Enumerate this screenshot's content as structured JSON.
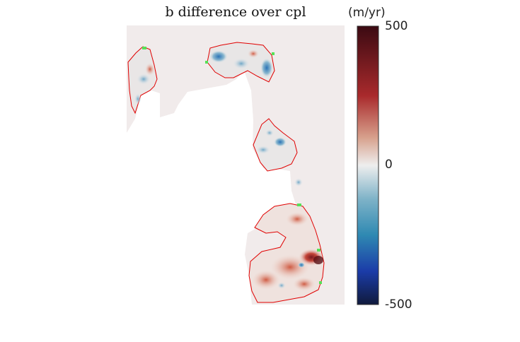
{
  "figure": {
    "title": "b difference over cpl",
    "colorbar": {
      "unit_label": "(m/yr)",
      "max_label": "500",
      "mid_label": "0",
      "min_label": "-500",
      "colormap": "diverging blue-white-red",
      "colors": {
        "top": "#3b0a12",
        "upper": "#a92a2c",
        "mid": "#eeeeee",
        "lower": "#2f89b2",
        "deep": "#1b3ca8",
        "bottom": "#101a3c"
      }
    },
    "map": {
      "background_fill": "#f1ebeb",
      "outline_color": "#e00000",
      "highlight_color": "#57e057"
    }
  }
}
